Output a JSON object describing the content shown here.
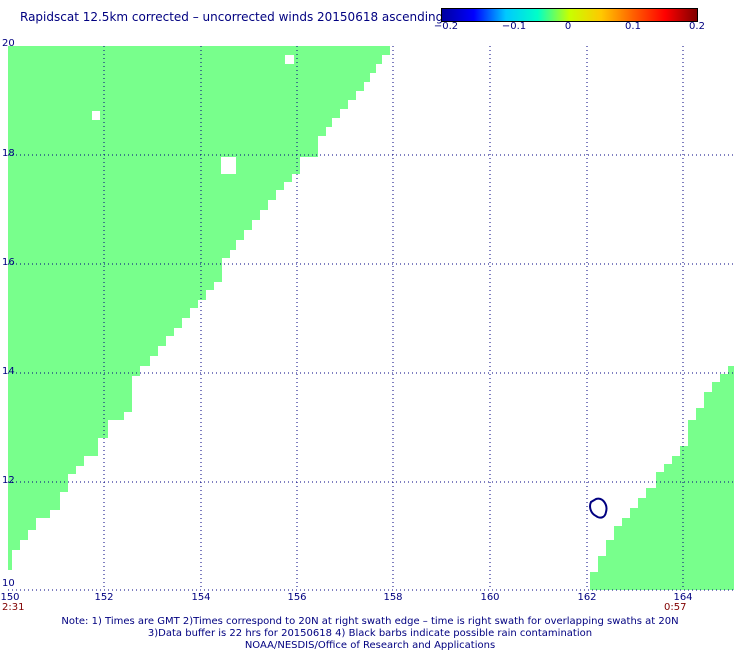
{
  "title": "Rapidscat 12.5km corrected – uncorrected winds 20150618 ascending",
  "colorbar": {
    "ticks": [
      "−0.2",
      "−0.1",
      "0",
      "0.1",
      "0.2"
    ],
    "colors": [
      "#0000a0",
      "#0000ff",
      "#00c8ff",
      "#00ffc8",
      "#c8ff00",
      "#ffc800",
      "#ff6000",
      "#ff0000",
      "#800000"
    ]
  },
  "map": {
    "lon_range": [
      150,
      165
    ],
    "lat_range": [
      10,
      20
    ],
    "lon_ticks": [
      "150",
      "152",
      "154",
      "156",
      "158",
      "160",
      "162",
      "164"
    ],
    "lat_ticks": [
      "20",
      "18",
      "16",
      "14",
      "12",
      "10"
    ],
    "swath_color": "#78ff8c",
    "grid_color": "#000080",
    "time_left": "2:31",
    "time_right": "0:57"
  },
  "notes": [
    "Note: 1) Times are GMT 2)Times correspond to 20N at right swath edge – time is right swath for overlapping swaths at 20N",
    "3)Data buffer is 22 hrs for 20150618 4) Black barbs indicate possible rain contamination",
    "NOAA/NESDIS/Office of Research and Applications"
  ]
}
